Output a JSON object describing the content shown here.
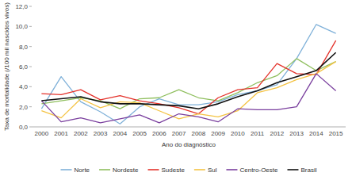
{
  "chart_data": {
    "type": "line",
    "x_label": "Ano do diagnóstico",
    "y_label": "Taxa de mortalidade (/100 mil nascidos vivos)",
    "categories": [
      "2000",
      "2001",
      "2002",
      "2003",
      "2004",
      "2005",
      "2006",
      "2007",
      "2008",
      "2009",
      "2010",
      "2011",
      "2012",
      "2013",
      "2014",
      "2015"
    ],
    "series": [
      {
        "name": "Norte",
        "color": "#7fb1d9",
        "values": [
          1.8,
          5.0,
          2.5,
          1.5,
          0.3,
          2.0,
          2.8,
          2.2,
          2.2,
          2.5,
          3.2,
          3.6,
          4.2,
          6.8,
          10.2,
          9.3
        ]
      },
      {
        "name": "Nordeste",
        "color": "#8fbf5e",
        "values": [
          2.3,
          2.6,
          2.9,
          2.6,
          1.8,
          2.8,
          2.9,
          3.7,
          2.9,
          2.6,
          3.4,
          4.4,
          5.1,
          6.8,
          5.6,
          6.5
        ]
      },
      {
        "name": "Sudeste",
        "color": "#e4322b",
        "values": [
          3.3,
          3.2,
          3.7,
          2.7,
          3.1,
          2.6,
          2.3,
          1.9,
          1.3,
          2.9,
          3.7,
          3.9,
          6.3,
          5.3,
          5.2,
          8.6
        ]
      },
      {
        "name": "Sul",
        "color": "#f4c343",
        "values": [
          1.6,
          0.9,
          2.8,
          1.9,
          2.5,
          2.4,
          1.6,
          0.8,
          1.3,
          1.0,
          1.6,
          3.4,
          3.9,
          4.7,
          5.3,
          6.5
        ]
      },
      {
        "name": "Centro-Oeste",
        "color": "#7a3f9e",
        "values": [
          2.6,
          0.5,
          0.9,
          0.4,
          0.8,
          1.2,
          0.4,
          1.3,
          1.0,
          0.5,
          1.8,
          1.7,
          1.7,
          2.0,
          5.3,
          3.6
        ]
      },
      {
        "name": "Brasil",
        "color": "#111111",
        "values": [
          2.6,
          2.8,
          3.0,
          2.5,
          2.3,
          2.3,
          2.2,
          2.1,
          1.8,
          2.3,
          3.0,
          3.6,
          4.4,
          5.0,
          5.6,
          7.4
        ]
      }
    ],
    "ylim": [
      0,
      12
    ],
    "yticks": [
      {
        "value": 0,
        "label": "0,0"
      },
      {
        "value": 2,
        "label": "2,0"
      },
      {
        "value": 4,
        "label": "4,0"
      },
      {
        "value": 6,
        "label": "6,0"
      },
      {
        "value": 8,
        "label": "8,0"
      },
      {
        "value": 10,
        "label": "10,0"
      },
      {
        "value": 12,
        "label": "12,0"
      }
    ],
    "grid": false,
    "legend": "bottom"
  }
}
